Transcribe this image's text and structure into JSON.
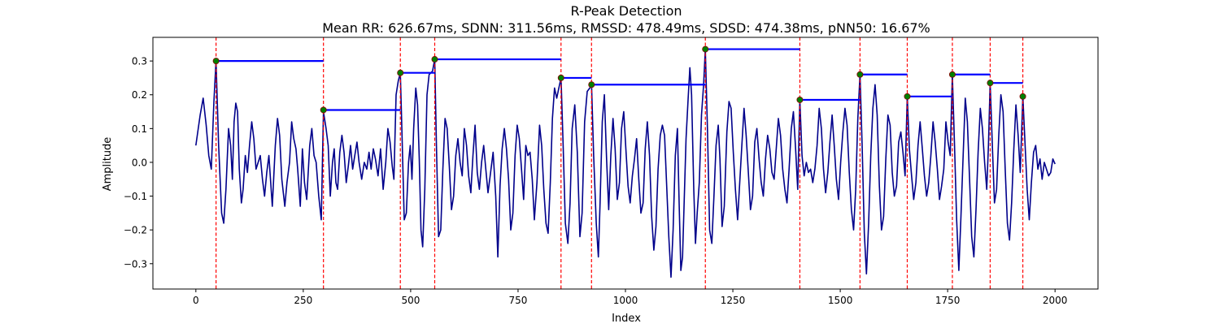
{
  "chart_data": {
    "type": "line",
    "title": "R-Peak Detection",
    "subtitle": "Mean RR: 626.67ms, SDNN: 311.56ms, RMSSD: 478.49ms, SDSD: 474.38ms, pNN50: 16.67%",
    "xlabel": "Index",
    "ylabel": "Amplitude",
    "xlim": [
      -100,
      2100
    ],
    "ylim": [
      -0.375,
      0.37
    ],
    "xticks": [
      0,
      250,
      500,
      750,
      1000,
      1250,
      1500,
      1750,
      2000
    ],
    "xtick_labels": [
      "0",
      "250",
      "500",
      "750",
      "1000",
      "1250",
      "1500",
      "1750",
      "2000"
    ],
    "yticks": [
      -0.3,
      -0.2,
      -0.1,
      0.0,
      0.1,
      0.2,
      0.3
    ],
    "ytick_labels": [
      "−0.3",
      "−0.2",
      "−0.1",
      "0.0",
      "0.1",
      "0.2",
      "0.3"
    ],
    "grid": false,
    "signal_length": 2000,
    "signal_samples": [
      [
        0,
        0.05
      ],
      [
        10,
        0.14
      ],
      [
        17,
        0.19
      ],
      [
        24,
        0.11
      ],
      [
        30,
        0.02
      ],
      [
        36,
        -0.02
      ],
      [
        42,
        0.18
      ],
      [
        47,
        0.3
      ],
      [
        53,
        0.05
      ],
      [
        60,
        -0.15
      ],
      [
        65,
        -0.18
      ],
      [
        70,
        -0.08
      ],
      [
        76,
        0.1
      ],
      [
        81,
        0.05
      ],
      [
        85,
        -0.05
      ],
      [
        89,
        0.12
      ],
      [
        93,
        0.175
      ],
      [
        97,
        0.15
      ],
      [
        101,
        -0.02
      ],
      [
        106,
        -0.12
      ],
      [
        110,
        -0.08
      ],
      [
        115,
        0.02
      ],
      [
        120,
        -0.03
      ],
      [
        125,
        0.05
      ],
      [
        130,
        0.12
      ],
      [
        135,
        0.07
      ],
      [
        140,
        -0.02
      ],
      [
        145,
        0.0
      ],
      [
        150,
        0.02
      ],
      [
        155,
        -0.05
      ],
      [
        160,
        -0.1
      ],
      [
        165,
        -0.03
      ],
      [
        170,
        0.02
      ],
      [
        178,
        -0.13
      ],
      [
        185,
        0.05
      ],
      [
        190,
        0.13
      ],
      [
        195,
        0.08
      ],
      [
        200,
        -0.05
      ],
      [
        207,
        -0.13
      ],
      [
        212,
        -0.06
      ],
      [
        218,
        0.0
      ],
      [
        223,
        0.12
      ],
      [
        228,
        0.07
      ],
      [
        233,
        0.04
      ],
      [
        237,
        -0.02
      ],
      [
        243,
        -0.13
      ],
      [
        248,
        0.04
      ],
      [
        253,
        -0.06
      ],
      [
        258,
        -0.11
      ],
      [
        265,
        0.05
      ],
      [
        270,
        0.1
      ],
      [
        275,
        0.02
      ],
      [
        280,
        0.0
      ],
      [
        286,
        -0.1
      ],
      [
        292,
        -0.17
      ],
      [
        297,
        0.15
      ],
      [
        303,
        0.1
      ],
      [
        308,
        0.05
      ],
      [
        313,
        -0.1
      ],
      [
        318,
        0.0
      ],
      [
        322,
        0.04
      ],
      [
        326,
        -0.06
      ],
      [
        330,
        -0.08
      ],
      [
        335,
        0.03
      ],
      [
        340,
        0.08
      ],
      [
        345,
        0.03
      ],
      [
        350,
        -0.06
      ],
      [
        355,
        -0.01
      ],
      [
        360,
        0.05
      ],
      [
        365,
        -0.02
      ],
      [
        370,
        0.02
      ],
      [
        375,
        0.06
      ],
      [
        380,
        0.0
      ],
      [
        386,
        -0.05
      ],
      [
        392,
        0.0
      ],
      [
        398,
        -0.02
      ],
      [
        403,
        0.03
      ],
      [
        408,
        -0.02
      ],
      [
        413,
        0.04
      ],
      [
        418,
        0.01
      ],
      [
        424,
        -0.04
      ],
      [
        430,
        0.04
      ],
      [
        436,
        -0.08
      ],
      [
        442,
        0.0
      ],
      [
        447,
        0.1
      ],
      [
        452,
        0.06
      ],
      [
        457,
        -0.01
      ],
      [
        461,
        -0.05
      ],
      [
        466,
        0.2
      ],
      [
        471,
        0.24
      ],
      [
        476,
        0.265
      ],
      [
        480,
        0.08
      ],
      [
        485,
        -0.17
      ],
      [
        490,
        -0.15
      ],
      [
        495,
        0.0
      ],
      [
        499,
        0.05
      ],
      [
        503,
        -0.05
      ],
      [
        507,
        0.1
      ],
      [
        512,
        0.22
      ],
      [
        516,
        0.17
      ],
      [
        520,
        0.01
      ],
      [
        524,
        -0.2
      ],
      [
        528,
        -0.25
      ],
      [
        533,
        -0.08
      ],
      [
        538,
        0.2
      ],
      [
        543,
        0.26
      ],
      [
        551,
        0.27
      ],
      [
        556,
        0.305
      ],
      [
        560,
        0.05
      ],
      [
        565,
        -0.22
      ],
      [
        570,
        -0.2
      ],
      [
        575,
        -0.02
      ],
      [
        580,
        0.13
      ],
      [
        585,
        0.1
      ],
      [
        590,
        -0.01
      ],
      [
        595,
        -0.14
      ],
      [
        600,
        -0.1
      ],
      [
        605,
        0.02
      ],
      [
        610,
        0.07
      ],
      [
        615,
        0.0
      ],
      [
        620,
        -0.04
      ],
      [
        625,
        0.1
      ],
      [
        630,
        0.05
      ],
      [
        635,
        -0.04
      ],
      [
        640,
        -0.09
      ],
      [
        645,
        0.02
      ],
      [
        650,
        0.11
      ],
      [
        655,
        -0.03
      ],
      [
        660,
        -0.08
      ],
      [
        665,
        0.0
      ],
      [
        670,
        0.05
      ],
      [
        675,
        -0.02
      ],
      [
        680,
        -0.09
      ],
      [
        686,
        -0.03
      ],
      [
        692,
        0.03
      ],
      [
        698,
        -0.1
      ],
      [
        703,
        -0.28
      ],
      [
        708,
        -0.07
      ],
      [
        713,
        0.04
      ],
      [
        718,
        0.1
      ],
      [
        723,
        0.04
      ],
      [
        728,
        -0.05
      ],
      [
        733,
        -0.2
      ],
      [
        738,
        -0.15
      ],
      [
        743,
        0.02
      ],
      [
        748,
        0.11
      ],
      [
        753,
        0.07
      ],
      [
        758,
        -0.02
      ],
      [
        763,
        -0.11
      ],
      [
        768,
        0.05
      ],
      [
        773,
        0.02
      ],
      [
        778,
        0.03
      ],
      [
        783,
        -0.05
      ],
      [
        788,
        -0.17
      ],
      [
        794,
        -0.06
      ],
      [
        800,
        0.11
      ],
      [
        805,
        0.05
      ],
      [
        810,
        -0.08
      ],
      [
        815,
        -0.18
      ],
      [
        820,
        -0.21
      ],
      [
        825,
        -0.06
      ],
      [
        830,
        0.13
      ],
      [
        835,
        0.22
      ],
      [
        840,
        0.19
      ],
      [
        845,
        0.22
      ],
      [
        850,
        0.25
      ],
      [
        855,
        0.05
      ],
      [
        860,
        -0.18
      ],
      [
        866,
        -0.24
      ],
      [
        871,
        -0.12
      ],
      [
        876,
        0.1
      ],
      [
        882,
        0.17
      ],
      [
        888,
        0.03
      ],
      [
        894,
        -0.22
      ],
      [
        899,
        -0.15
      ],
      [
        905,
        0.12
      ],
      [
        911,
        0.21
      ],
      [
        917,
        0.22
      ],
      [
        921,
        0.23
      ],
      [
        926,
        0.02
      ],
      [
        932,
        -0.18
      ],
      [
        937,
        -0.28
      ],
      [
        941,
        -0.12
      ],
      [
        946,
        0.12
      ],
      [
        951,
        0.2
      ],
      [
        956,
        0.01
      ],
      [
        961,
        -0.14
      ],
      [
        966,
        0.02
      ],
      [
        971,
        0.13
      ],
      [
        976,
        0.04
      ],
      [
        981,
        -0.11
      ],
      [
        986,
        -0.06
      ],
      [
        991,
        0.1
      ],
      [
        996,
        0.15
      ],
      [
        1001,
        0.04
      ],
      [
        1006,
        -0.07
      ],
      [
        1011,
        -0.12
      ],
      [
        1016,
        -0.04
      ],
      [
        1021,
        0.01
      ],
      [
        1026,
        0.07
      ],
      [
        1031,
        -0.05
      ],
      [
        1036,
        -0.15
      ],
      [
        1041,
        -0.12
      ],
      [
        1046,
        0.04
      ],
      [
        1051,
        0.12
      ],
      [
        1056,
        0.02
      ],
      [
        1061,
        -0.16
      ],
      [
        1066,
        -0.26
      ],
      [
        1071,
        -0.19
      ],
      [
        1076,
        -0.02
      ],
      [
        1081,
        0.08
      ],
      [
        1086,
        0.11
      ],
      [
        1091,
        0.08
      ],
      [
        1096,
        -0.07
      ],
      [
        1101,
        -0.22
      ],
      [
        1106,
        -0.34
      ],
      [
        1111,
        -0.2
      ],
      [
        1116,
        0.02
      ],
      [
        1121,
        0.1
      ],
      [
        1125,
        -0.12
      ],
      [
        1129,
        -0.32
      ],
      [
        1133,
        -0.28
      ],
      [
        1137,
        -0.1
      ],
      [
        1141,
        0.07
      ],
      [
        1146,
        0.19
      ],
      [
        1150,
        0.28
      ],
      [
        1154,
        0.2
      ],
      [
        1159,
        -0.08
      ],
      [
        1163,
        -0.24
      ],
      [
        1167,
        -0.15
      ],
      [
        1172,
        -0.06
      ],
      [
        1177,
        0.14
      ],
      [
        1182,
        0.23
      ],
      [
        1186,
        0.335
      ],
      [
        1191,
        0.09
      ],
      [
        1196,
        -0.2
      ],
      [
        1201,
        -0.24
      ],
      [
        1206,
        -0.1
      ],
      [
        1211,
        0.05
      ],
      [
        1216,
        0.11
      ],
      [
        1220,
        0.01
      ],
      [
        1225,
        -0.19
      ],
      [
        1230,
        -0.13
      ],
      [
        1236,
        0.09
      ],
      [
        1241,
        0.18
      ],
      [
        1246,
        0.16
      ],
      [
        1251,
        0.03
      ],
      [
        1256,
        -0.08
      ],
      [
        1261,
        -0.17
      ],
      [
        1266,
        -0.06
      ],
      [
        1271,
        0.05
      ],
      [
        1276,
        0.16
      ],
      [
        1281,
        0.08
      ],
      [
        1286,
        -0.03
      ],
      [
        1291,
        -0.14
      ],
      [
        1296,
        -0.1
      ],
      [
        1301,
        0.06
      ],
      [
        1306,
        0.1
      ],
      [
        1311,
        0.01
      ],
      [
        1316,
        -0.06
      ],
      [
        1321,
        -0.1
      ],
      [
        1326,
        0.01
      ],
      [
        1331,
        0.08
      ],
      [
        1336,
        0.04
      ],
      [
        1341,
        -0.03
      ],
      [
        1346,
        -0.05
      ],
      [
        1351,
        0.04
      ],
      [
        1356,
        0.13
      ],
      [
        1361,
        0.08
      ],
      [
        1366,
        -0.02
      ],
      [
        1371,
        -0.08
      ],
      [
        1376,
        -0.12
      ],
      [
        1381,
        -0.02
      ],
      [
        1386,
        0.1
      ],
      [
        1391,
        0.15
      ],
      [
        1396,
        0.04
      ],
      [
        1401,
        -0.08
      ],
      [
        1406,
        0.185
      ],
      [
        1411,
        0.02
      ],
      [
        1416,
        -0.04
      ],
      [
        1421,
        0.0
      ],
      [
        1426,
        -0.03
      ],
      [
        1431,
        -0.02
      ],
      [
        1436,
        -0.06
      ],
      [
        1441,
        -0.02
      ],
      [
        1446,
        0.05
      ],
      [
        1451,
        0.16
      ],
      [
        1456,
        0.1
      ],
      [
        1461,
        -0.02
      ],
      [
        1466,
        -0.09
      ],
      [
        1471,
        -0.03
      ],
      [
        1476,
        0.06
      ],
      [
        1481,
        0.14
      ],
      [
        1486,
        0.05
      ],
      [
        1491,
        -0.05
      ],
      [
        1496,
        -0.11
      ],
      [
        1501,
        0.0
      ],
      [
        1506,
        0.09
      ],
      [
        1511,
        0.16
      ],
      [
        1516,
        0.11
      ],
      [
        1521,
        -0.03
      ],
      [
        1526,
        -0.14
      ],
      [
        1531,
        -0.2
      ],
      [
        1536,
        -0.08
      ],
      [
        1541,
        0.13
      ],
      [
        1546,
        0.26
      ],
      [
        1551,
        0.05
      ],
      [
        1556,
        -0.21
      ],
      [
        1561,
        -0.33
      ],
      [
        1566,
        -0.18
      ],
      [
        1571,
        0.02
      ],
      [
        1576,
        0.16
      ],
      [
        1581,
        0.23
      ],
      [
        1586,
        0.14
      ],
      [
        1591,
        -0.07
      ],
      [
        1596,
        -0.2
      ],
      [
        1601,
        -0.16
      ],
      [
        1606,
        0.01
      ],
      [
        1611,
        0.14
      ],
      [
        1616,
        0.11
      ],
      [
        1621,
        -0.03
      ],
      [
        1626,
        -0.1
      ],
      [
        1631,
        -0.07
      ],
      [
        1636,
        0.06
      ],
      [
        1641,
        0.09
      ],
      [
        1646,
        0.03
      ],
      [
        1651,
        -0.04
      ],
      [
        1656,
        0.195
      ],
      [
        1661,
        0.04
      ],
      [
        1666,
        -0.04
      ],
      [
        1671,
        -0.11
      ],
      [
        1676,
        -0.06
      ],
      [
        1681,
        0.05
      ],
      [
        1686,
        0.12
      ],
      [
        1691,
        0.04
      ],
      [
        1696,
        -0.04
      ],
      [
        1701,
        -0.1
      ],
      [
        1706,
        -0.06
      ],
      [
        1711,
        0.02
      ],
      [
        1716,
        0.12
      ],
      [
        1721,
        0.06
      ],
      [
        1726,
        -0.02
      ],
      [
        1731,
        -0.11
      ],
      [
        1736,
        -0.07
      ],
      [
        1741,
        -0.02
      ],
      [
        1746,
        0.12
      ],
      [
        1751,
        0.06
      ],
      [
        1756,
        0.02
      ],
      [
        1761,
        0.26
      ],
      [
        1766,
        0.05
      ],
      [
        1771,
        -0.17
      ],
      [
        1776,
        -0.32
      ],
      [
        1781,
        -0.16
      ],
      [
        1786,
        0.02
      ],
      [
        1791,
        0.19
      ],
      [
        1796,
        0.12
      ],
      [
        1801,
        -0.05
      ],
      [
        1806,
        -0.22
      ],
      [
        1811,
        -0.28
      ],
      [
        1816,
        -0.14
      ],
      [
        1821,
        0.03
      ],
      [
        1826,
        0.16
      ],
      [
        1831,
        0.1
      ],
      [
        1836,
        0.0
      ],
      [
        1841,
        -0.08
      ],
      [
        1845,
        0.05
      ],
      [
        1849,
        0.235
      ],
      [
        1854,
        0.05
      ],
      [
        1859,
        -0.12
      ],
      [
        1864,
        -0.08
      ],
      [
        1869,
        0.08
      ],
      [
        1874,
        0.2
      ],
      [
        1879,
        0.15
      ],
      [
        1884,
        -0.02
      ],
      [
        1889,
        -0.18
      ],
      [
        1894,
        -0.23
      ],
      [
        1899,
        -0.12
      ],
      [
        1904,
        0.04
      ],
      [
        1909,
        0.17
      ],
      [
        1914,
        0.08
      ],
      [
        1919,
        -0.03
      ],
      [
        1925,
        0.195
      ],
      [
        1930,
        0.06
      ],
      [
        1935,
        -0.08
      ],
      [
        1940,
        -0.17
      ],
      [
        1945,
        -0.06
      ],
      [
        1950,
        0.03
      ],
      [
        1955,
        0.05
      ],
      [
        1960,
        -0.02
      ],
      [
        1965,
        0.01
      ],
      [
        1970,
        -0.05
      ],
      [
        1975,
        0.0
      ],
      [
        1980,
        -0.02
      ],
      [
        1985,
        -0.04
      ],
      [
        1990,
        -0.03
      ],
      [
        1995,
        0.01
      ],
      [
        2000,
        -0.005
      ]
    ],
    "r_peaks": [
      {
        "x": 47,
        "y": 0.3
      },
      {
        "x": 297,
        "y": 0.155
      },
      {
        "x": 476,
        "y": 0.265
      },
      {
        "x": 556,
        "y": 0.305
      },
      {
        "x": 850,
        "y": 0.25
      },
      {
        "x": 921,
        "y": 0.23
      },
      {
        "x": 1186,
        "y": 0.335
      },
      {
        "x": 1406,
        "y": 0.185
      },
      {
        "x": 1546,
        "y": 0.26
      },
      {
        "x": 1656,
        "y": 0.195
      },
      {
        "x": 1761,
        "y": 0.26
      },
      {
        "x": 1849,
        "y": 0.235
      },
      {
        "x": 1925,
        "y": 0.195
      }
    ],
    "colors": {
      "signal": "#00008b",
      "peak_line": "#ff0000",
      "rr_interval": "#0000ff",
      "peak_fill": "#008000",
      "peak_edge": "#8b0000"
    }
  }
}
